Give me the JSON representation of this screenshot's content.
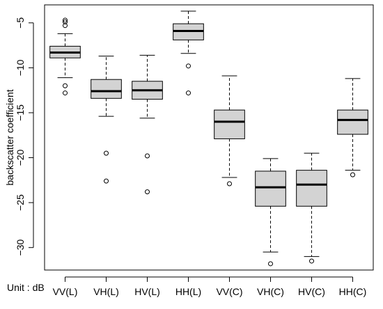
{
  "chart_data": {
    "type": "boxplot",
    "ylabel": "backscatter coefficient",
    "unit_note": "Unit : dB",
    "ylim": [
      -32.5,
      -3
    ],
    "y_ticks": [
      -5,
      -10,
      -15,
      -20,
      -25,
      -30
    ],
    "box_fill": "#d3d3d3",
    "categories": [
      "VV(L)",
      "VH(L)",
      "HV(L)",
      "HH(L)",
      "VV(C)",
      "VH(C)",
      "HV(C)",
      "HH(C)"
    ],
    "boxes": [
      {
        "whisker_low": -11.1,
        "q1": -8.9,
        "median": -8.3,
        "q3": -7.6,
        "whisker_high": -6.2,
        "outliers": [
          -4.7,
          -4.9,
          -5.3,
          -12.0,
          -12.8
        ]
      },
      {
        "whisker_low": -15.4,
        "q1": -13.4,
        "median": -12.6,
        "q3": -11.3,
        "whisker_high": -8.7,
        "outliers": [
          -19.5,
          -22.6
        ]
      },
      {
        "whisker_low": -15.6,
        "q1": -13.5,
        "median": -12.5,
        "q3": -11.5,
        "whisker_high": -8.6,
        "outliers": [
          -19.8,
          -23.8
        ]
      },
      {
        "whisker_low": -8.4,
        "q1": -6.9,
        "median": -5.9,
        "q3": -5.1,
        "whisker_high": -3.7,
        "outliers": [
          -9.8,
          -12.8
        ]
      },
      {
        "whisker_low": -22.2,
        "q1": -17.9,
        "median": -16.0,
        "q3": -14.7,
        "whisker_high": -10.9,
        "outliers": [
          -22.9
        ]
      },
      {
        "whisker_low": -30.5,
        "q1": -25.4,
        "median": -23.3,
        "q3": -21.5,
        "whisker_high": -20.1,
        "outliers": [
          -31.8
        ]
      },
      {
        "whisker_low": -31.0,
        "q1": -25.4,
        "median": -23.0,
        "q3": -21.4,
        "whisker_high": -19.5,
        "outliers": [
          -31.5
        ]
      },
      {
        "whisker_low": -21.4,
        "q1": -17.4,
        "median": -15.8,
        "q3": -14.7,
        "whisker_high": -11.2,
        "outliers": [
          -21.9
        ]
      }
    ]
  }
}
